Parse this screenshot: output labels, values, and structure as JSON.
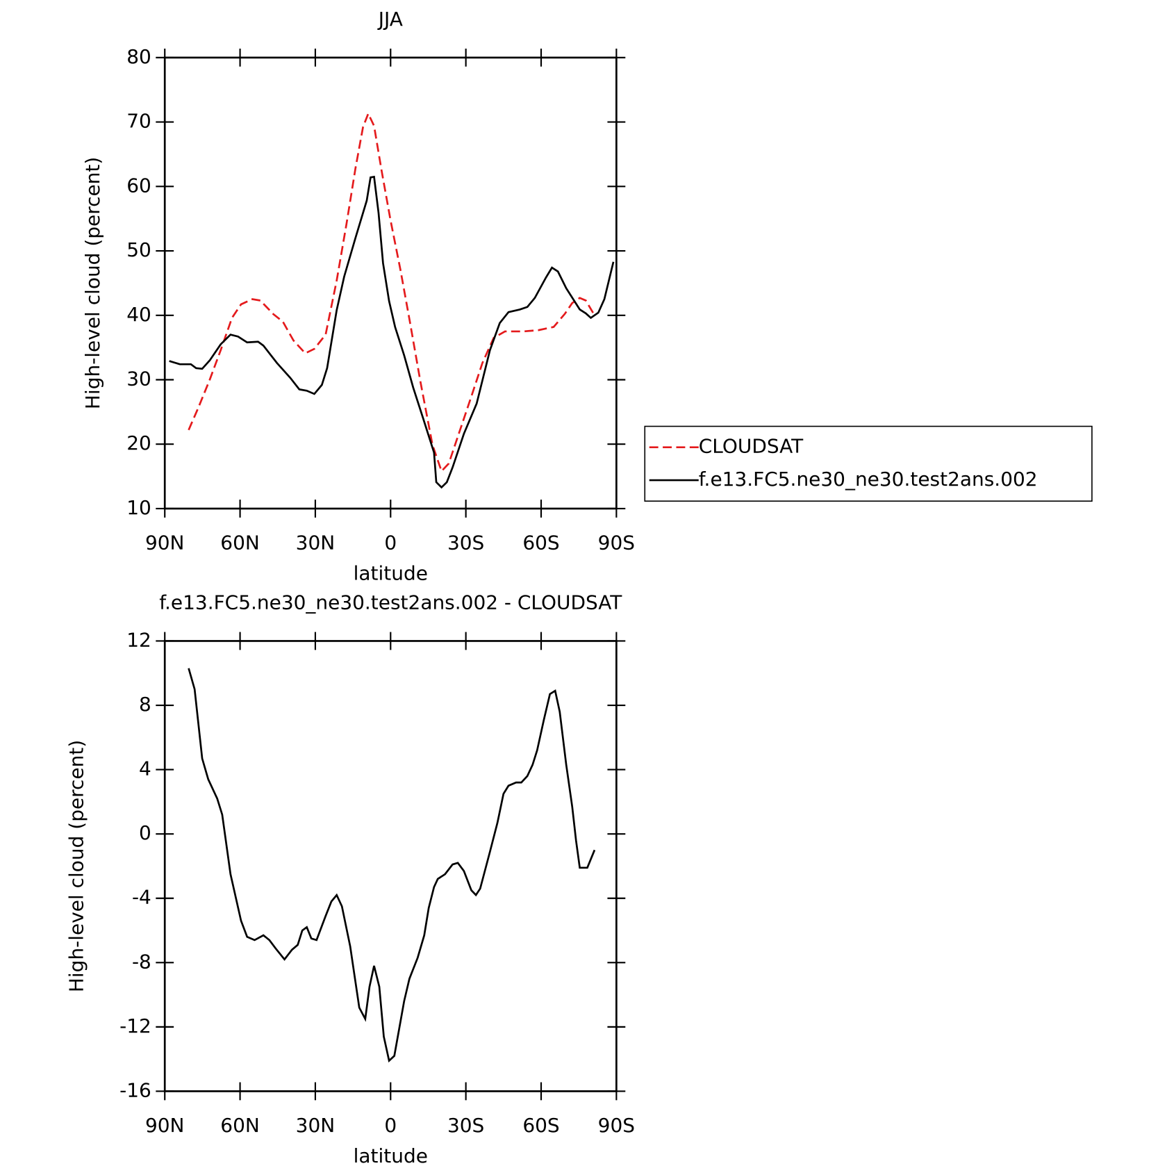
{
  "chart_data": [
    {
      "type": "line",
      "title": "JJA",
      "xlabel": "latitude",
      "ylabel": "High-level cloud (percent)",
      "xlim": [
        90,
        -90
      ],
      "xticks": [
        {
          "value": 90,
          "label": "90N"
        },
        {
          "value": 60,
          "label": "60N"
        },
        {
          "value": 30,
          "label": "30N"
        },
        0,
        {
          "value": -30,
          "label": "30S"
        },
        {
          "value": -60,
          "label": "60S"
        },
        {
          "value": -90,
          "label": "90S"
        }
      ],
      "ylim": [
        10,
        80
      ],
      "yticks": [
        10,
        20,
        30,
        40,
        50,
        60,
        70,
        80
      ],
      "legend": "right",
      "series": [
        {
          "name": "CLOUDSAT",
          "color": "#e41a1c",
          "dash": true,
          "x": [
            80.5,
            76.6,
            72.1,
            67.7,
            63.2,
            59.6,
            55.1,
            51.9,
            46.8,
            42.9,
            38.7,
            34,
            30.4,
            25.9,
            21.5,
            17.6,
            14,
            11,
            8.9,
            6.6,
            3.6,
            0,
            -3.9,
            -7.7,
            -11.9,
            -16.7,
            -20.3,
            -23.2,
            -27.7,
            -32.2,
            -36.6,
            -41.1,
            -45.6,
            -53,
            -59,
            -65,
            -69.4,
            -72.4,
            -75.4,
            -77.8,
            -81.3
          ],
          "values": [
            22.2,
            25.7,
            30,
            34.6,
            39.6,
            41.7,
            42.5,
            42.3,
            40.2,
            39,
            36.1,
            34.1,
            34.8,
            37,
            45.4,
            54.1,
            62.8,
            69.2,
            71.3,
            69.4,
            62.5,
            54.7,
            47.1,
            39,
            29.7,
            19.9,
            15.8,
            17,
            22.2,
            27.4,
            32.6,
            36.5,
            37.5,
            37.5,
            37.7,
            38.2,
            40.2,
            41.9,
            42.7,
            42.3,
            40
          ]
        },
        {
          "name": "f.e13.FC5.ne30_ne30.test2ans.002",
          "color": "#000000",
          "dash": false,
          "x": [
            88.2,
            84,
            79.6,
            77.5,
            75.1,
            72.1,
            67.7,
            63.8,
            60.8,
            57.2,
            52.8,
            50.7,
            45.3,
            40,
            36.4,
            33.4,
            30.4,
            27.4,
            25.3,
            21.5,
            18.5,
            14,
            9.5,
            8,
            6.6,
            4.8,
            3,
            0.6,
            -1.8,
            -5.4,
            -9,
            -12.8,
            -17.3,
            -18.2,
            -20.3,
            -22.4,
            -24.7,
            -29.2,
            -34.3,
            -39.6,
            -43.5,
            -47,
            -51.5,
            -54.5,
            -57.5,
            -62,
            -64.3,
            -66.7,
            -70,
            -75.4,
            -77.8,
            -79.8,
            -82.8,
            -85.2,
            -88.8
          ],
          "values": [
            32.9,
            32.4,
            32.4,
            31.8,
            31.7,
            33,
            35.5,
            37,
            36.7,
            35.8,
            35.9,
            35.3,
            32.6,
            30.3,
            28.5,
            28.3,
            27.8,
            29.2,
            31.8,
            40.8,
            46,
            52,
            57.8,
            61.4,
            61.5,
            55.9,
            48.1,
            42.2,
            38.2,
            33.8,
            28.8,
            24.2,
            18.7,
            14.1,
            13.3,
            14.1,
            16.4,
            21.6,
            26.3,
            34.6,
            38.8,
            40.5,
            40.9,
            41.3,
            42.7,
            45.9,
            47.4,
            46.8,
            44.2,
            40.9,
            40.3,
            39.6,
            40.4,
            42.5,
            48.3
          ]
        }
      ]
    },
    {
      "type": "line",
      "title": "f.e13.FC5.ne30_ne30.test2ans.002 - CLOUDSAT",
      "xlabel": "latitude",
      "ylabel": "High-level cloud (percent)",
      "xlim": [
        90,
        -90
      ],
      "xticks": [
        {
          "value": 90,
          "label": "90N"
        },
        {
          "value": 60,
          "label": "60N"
        },
        {
          "value": 30,
          "label": "30N"
        },
        0,
        {
          "value": -30,
          "label": "30S"
        },
        {
          "value": -60,
          "label": "60S"
        },
        {
          "value": -90,
          "label": "90S"
        }
      ],
      "ylim": [
        -16,
        12
      ],
      "yticks": [
        -16,
        -12,
        -8,
        -4,
        0,
        4,
        8,
        12
      ],
      "series": [
        {
          "color": "#000000",
          "dash": false,
          "x": [
            80.5,
            78.1,
            75.1,
            72.7,
            69.1,
            67.1,
            63.8,
            59.6,
            57.2,
            54.2,
            50.7,
            48.3,
            45.9,
            42.3,
            39.3,
            37,
            35.2,
            33.4,
            31.6,
            29.5,
            25.9,
            23.6,
            21.5,
            19.4,
            16.1,
            12.5,
            10.1,
            8.4,
            6.6,
            4.5,
            2.7,
            0.6,
            -1.5,
            -5.4,
            -7.5,
            -10.8,
            -13.4,
            -15.2,
            -17.3,
            -18.8,
            -21.7,
            -24.7,
            -26.8,
            -29.2,
            -32.2,
            -34,
            -35.7,
            -39.6,
            -42.6,
            -45,
            -47,
            -50,
            -52.1,
            -54.5,
            -56.6,
            -58.4,
            -61.1,
            -63.5,
            -65.6,
            -67.4,
            -70,
            -72.4,
            -73.9,
            -75.4,
            -78.4,
            -81.3
          ],
          "values": [
            10.3,
            9,
            4.7,
            3.4,
            2.2,
            1.2,
            -2.5,
            -5.4,
            -6.4,
            -6.6,
            -6.3,
            -6.6,
            -7.1,
            -7.8,
            -7.2,
            -6.9,
            -6,
            -5.8,
            -6.5,
            -6.6,
            -5.1,
            -4.2,
            -3.8,
            -4.5,
            -7,
            -10.8,
            -11.5,
            -9.5,
            -8.2,
            -9.5,
            -12.6,
            -14.1,
            -13.8,
            -10.4,
            -9,
            -7.7,
            -6.3,
            -4.6,
            -3.3,
            -2.8,
            -2.5,
            -1.9,
            -1.8,
            -2.3,
            -3.5,
            -3.8,
            -3.4,
            -1.1,
            0.7,
            2.5,
            3,
            3.2,
            3.2,
            3.6,
            4.3,
            5.2,
            7.1,
            8.7,
            8.9,
            7.6,
            4.3,
            1.7,
            -0.4,
            -2.1,
            -2.1,
            -1
          ]
        }
      ]
    }
  ]
}
